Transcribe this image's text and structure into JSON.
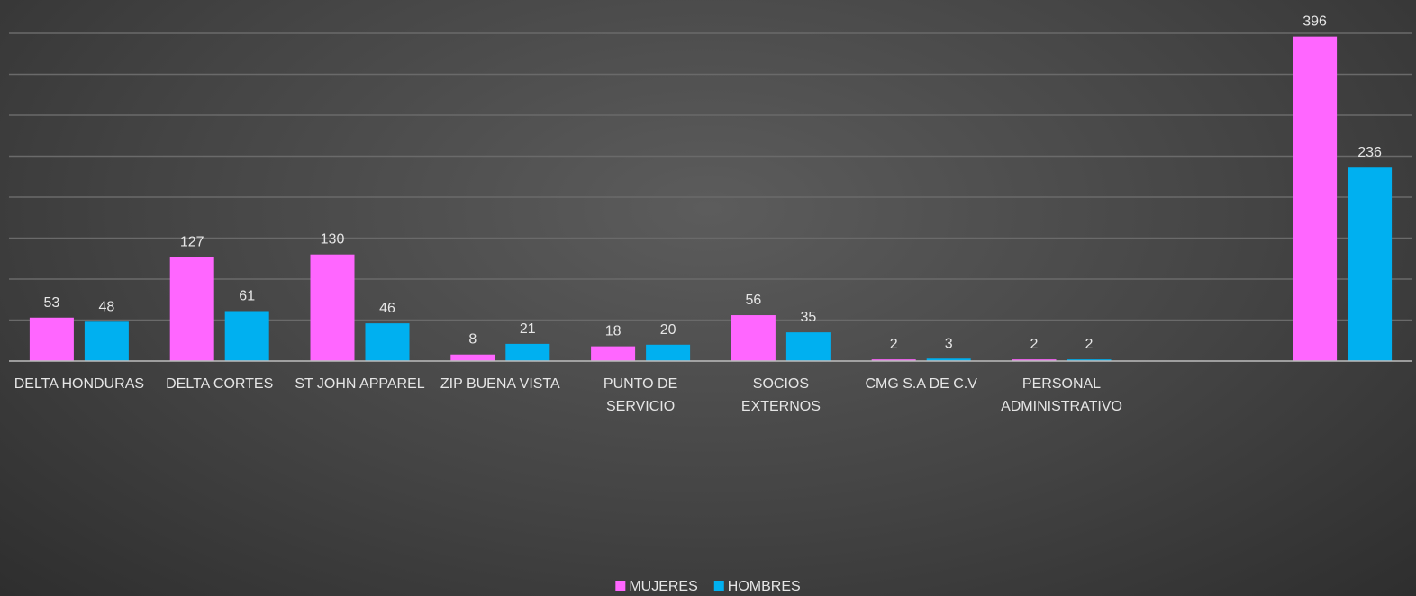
{
  "chart_data": {
    "type": "bar",
    "categories": [
      "DELTA HONDURAS",
      "DELTA CORTES",
      "ST JOHN APPAREL",
      "ZIP  BUENA VISTA",
      "PUNTO DE SERVICIO",
      "SOCIOS EXTERNOS",
      "CMG S.A DE C.V",
      "PERSONAL ADMINISTRATIVO",
      "",
      ""
    ],
    "series": [
      {
        "name": "MUJERES",
        "color": "#ff66ff",
        "values": [
          53,
          127,
          130,
          8,
          18,
          56,
          2,
          2,
          null,
          396
        ]
      },
      {
        "name": "HOMBRES",
        "color": "#00b0f0",
        "values": [
          48,
          61,
          46,
          21,
          20,
          35,
          3,
          2,
          null,
          236
        ]
      }
    ],
    "ylim": [
      0,
      400
    ],
    "grid": true,
    "legend": "bottom",
    "title": "",
    "xlabel": "",
    "ylabel": ""
  }
}
